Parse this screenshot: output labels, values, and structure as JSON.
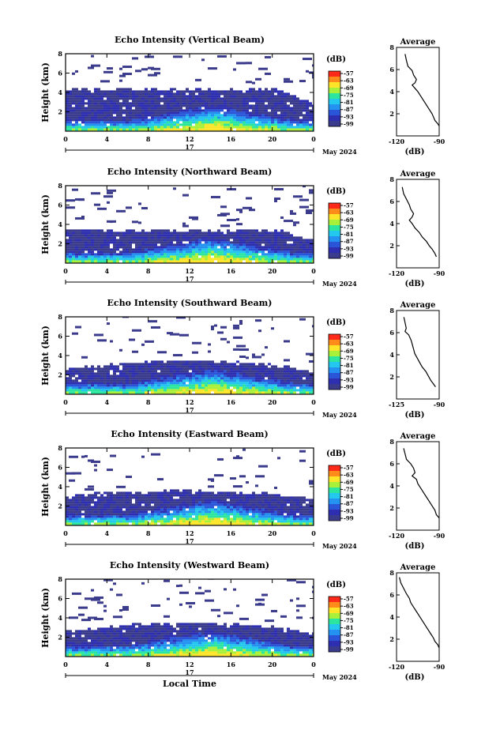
{
  "chart_data": [
    {
      "type": "heatmap",
      "title": "Echo Intensity (Vertical Beam)",
      "ylabel": "Height (km)",
      "x_ticks": [
        "0",
        "4",
        "8",
        "12",
        "16",
        "20",
        "0"
      ],
      "y_ticks": [
        "2",
        "4",
        "6",
        "8"
      ],
      "xlim": [
        0,
        24
      ],
      "ylim": [
        0,
        8
      ],
      "colorbar": {
        "unit": "(dB)",
        "ticks": [
          "-57",
          "-63",
          "-69",
          "-75",
          "-81",
          "-87",
          "-93",
          "-99"
        ]
      },
      "date_label": "May 2024",
      "day_label": "17",
      "profile": {
        "title": "Average",
        "xlabel": "(dB)",
        "x_ticks": [
          "-120",
          "-90"
        ],
        "y_ticks": [
          "2",
          "4",
          "6",
          "8"
        ],
        "xlim": [
          -120,
          -90
        ],
        "points": [
          [
            -114,
            7.4
          ],
          [
            -113,
            6.8
          ],
          [
            -112,
            6.3
          ],
          [
            -109,
            5.9
          ],
          [
            -108,
            5.5
          ],
          [
            -106,
            5.1
          ],
          [
            -107,
            4.8
          ],
          [
            -109,
            4.6
          ],
          [
            -107,
            4.3
          ],
          [
            -105,
            4.0
          ],
          [
            -103,
            3.6
          ],
          [
            -101,
            3.2
          ],
          [
            -99,
            2.8
          ],
          [
            -97,
            2.4
          ],
          [
            -95,
            2.0
          ],
          [
            -94,
            1.7
          ],
          [
            -93,
            1.4
          ],
          [
            -91,
            1.1
          ],
          [
            -90,
            0.9
          ]
        ]
      },
      "cloud_top": [
        4.2,
        4.1,
        4.2,
        4.2,
        4.1,
        4.2,
        4.2,
        4.1,
        4.2,
        4.2,
        4.2,
        4.1,
        4.2,
        4.2,
        4.2,
        4.1,
        4.2,
        4.2,
        4.2,
        4.1,
        4.2,
        4.0,
        3.6,
        3.0,
        2.6
      ]
    },
    {
      "type": "heatmap",
      "title": "Echo Intensity (Northward Beam)",
      "ylabel": "Height (km)",
      "x_ticks": [
        "0",
        "4",
        "8",
        "12",
        "16",
        "20",
        "0"
      ],
      "y_ticks": [
        "2",
        "4",
        "6",
        "8"
      ],
      "xlim": [
        0,
        24
      ],
      "ylim": [
        0,
        8
      ],
      "colorbar": {
        "unit": "(dB)",
        "ticks": [
          "-57",
          "-63",
          "-69",
          "-75",
          "-81",
          "-87",
          "-93",
          "-99"
        ]
      },
      "date_label": "May 2024",
      "day_label": "17",
      "profile": {
        "title": "Average",
        "xlabel": "(dB)",
        "x_ticks": [
          "-120",
          "-90"
        ],
        "y_ticks": [
          "2",
          "4",
          "6",
          "8"
        ],
        "xlim": [
          -120,
          -90
        ],
        "points": [
          [
            -116,
            7.3
          ],
          [
            -115,
            6.7
          ],
          [
            -113,
            6.2
          ],
          [
            -111,
            5.7
          ],
          [
            -110,
            5.3
          ],
          [
            -108,
            4.9
          ],
          [
            -109,
            4.6
          ],
          [
            -111,
            4.3
          ],
          [
            -109,
            4.0
          ],
          [
            -107,
            3.6
          ],
          [
            -104,
            3.2
          ],
          [
            -102,
            2.8
          ],
          [
            -99,
            2.4
          ],
          [
            -97,
            2.0
          ],
          [
            -95,
            1.7
          ],
          [
            -93,
            1.3
          ],
          [
            -92,
            1.0
          ]
        ]
      },
      "cloud_top": [
        3.4,
        3.3,
        3.3,
        3.4,
        3.3,
        3.2,
        3.3,
        3.3,
        3.2,
        3.3,
        3.3,
        3.2,
        3.3,
        3.3,
        3.2,
        3.2,
        3.3,
        3.2,
        3.3,
        3.2,
        3.3,
        3.2,
        2.8,
        2.4,
        2.2
      ]
    },
    {
      "type": "heatmap",
      "title": "Echo Intensity (Southward Beam)",
      "ylabel": "Height (km)",
      "x_ticks": [
        "0",
        "4",
        "8",
        "12",
        "16",
        "20",
        "0"
      ],
      "y_ticks": [
        "2",
        "4",
        "6",
        "8"
      ],
      "xlim": [
        0,
        24
      ],
      "ylim": [
        0,
        8
      ],
      "colorbar": {
        "unit": "(dB)",
        "ticks": [
          "-57",
          "-63",
          "-69",
          "-75",
          "-81",
          "-87",
          "-93",
          "-99"
        ]
      },
      "date_label": "May 2024",
      "day_label": "17",
      "profile": {
        "title": "Average",
        "xlabel": "(dB)",
        "x_ticks": [
          "-125",
          "-90"
        ],
        "y_ticks": [
          "2",
          "4",
          "6",
          "8"
        ],
        "xlim": [
          -125,
          -90
        ],
        "points": [
          [
            -119,
            7.4
          ],
          [
            -118,
            6.9
          ],
          [
            -117,
            6.4
          ],
          [
            -118,
            6.1
          ],
          [
            -115,
            5.8
          ],
          [
            -113,
            5.3
          ],
          [
            -112,
            4.9
          ],
          [
            -111,
            4.5
          ],
          [
            -110,
            4.1
          ],
          [
            -108,
            3.7
          ],
          [
            -106,
            3.3
          ],
          [
            -104,
            2.9
          ],
          [
            -101,
            2.5
          ],
          [
            -99,
            2.1
          ],
          [
            -97,
            1.7
          ],
          [
            -95,
            1.4
          ],
          [
            -93,
            1.1
          ]
        ]
      },
      "cloud_top": [
        2.5,
        2.6,
        2.7,
        2.8,
        2.9,
        3.0,
        3.1,
        3.2,
        3.2,
        3.3,
        3.3,
        3.4,
        3.4,
        3.4,
        3.3,
        3.3,
        3.2,
        3.2,
        3.1,
        3.0,
        2.9,
        2.8,
        2.6,
        2.4,
        2.2
      ]
    },
    {
      "type": "heatmap",
      "title": "Echo Intensity (Eastward Beam)",
      "ylabel": "Height (km)",
      "x_ticks": [
        "0",
        "4",
        "8",
        "12",
        "16",
        "20",
        "0"
      ],
      "y_ticks": [
        "2",
        "4",
        "6",
        "8"
      ],
      "xlim": [
        0,
        24
      ],
      "ylim": [
        0,
        8
      ],
      "colorbar": {
        "unit": "(dB)",
        "ticks": [
          "-57",
          "-63",
          "-69",
          "-75",
          "-81",
          "-87",
          "-93",
          "-99"
        ]
      },
      "date_label": "May 2024",
      "day_label": "17",
      "profile": {
        "title": "Average",
        "xlabel": "(dB)",
        "x_ticks": [
          "-120",
          "-90"
        ],
        "y_ticks": [
          "2",
          "4",
          "6",
          "8"
        ],
        "xlim": [
          -120,
          -90
        ],
        "points": [
          [
            -115,
            7.4
          ],
          [
            -114,
            6.9
          ],
          [
            -113,
            6.4
          ],
          [
            -110,
            6.0
          ],
          [
            -108,
            5.6
          ],
          [
            -107,
            5.2
          ],
          [
            -109,
            4.9
          ],
          [
            -106,
            4.6
          ],
          [
            -105,
            4.2
          ],
          [
            -103,
            3.8
          ],
          [
            -101,
            3.4
          ],
          [
            -99,
            3.0
          ],
          [
            -97,
            2.6
          ],
          [
            -95,
            2.2
          ],
          [
            -93,
            1.8
          ],
          [
            -92,
            1.4
          ],
          [
            -90,
            1.1
          ]
        ]
      },
      "cloud_top": [
        3.0,
        3.1,
        3.1,
        3.2,
        3.2,
        3.3,
        3.3,
        3.3,
        3.3,
        3.4,
        3.4,
        3.4,
        3.4,
        3.4,
        3.3,
        3.3,
        3.3,
        3.3,
        3.2,
        3.2,
        3.1,
        3.0,
        2.9,
        2.7,
        2.5
      ]
    },
    {
      "type": "heatmap",
      "title": "Echo Intensity (Westward Beam)",
      "ylabel": "Height (km)",
      "x_ticks": [
        "0",
        "4",
        "8",
        "12",
        "16",
        "20",
        "0"
      ],
      "y_ticks": [
        "2",
        "4",
        "6",
        "8"
      ],
      "xlim": [
        0,
        24
      ],
      "ylim": [
        0,
        8
      ],
      "colorbar": {
        "unit": "(dB)",
        "ticks": [
          "-57",
          "-63",
          "-69",
          "-75",
          "-81",
          "-87",
          "-93",
          "-99"
        ]
      },
      "date_label": "May 2024",
      "day_label": "17",
      "xlabel": "Local Time",
      "profile": {
        "title": "Average",
        "xlabel": "(dB)",
        "x_ticks": [
          "-120",
          "-90"
        ],
        "y_ticks": [
          "2",
          "4",
          "6",
          "8"
        ],
        "xlim": [
          -120,
          -90
        ],
        "points": [
          [
            -118,
            7.6
          ],
          [
            -117,
            7.1
          ],
          [
            -115,
            6.6
          ],
          [
            -113,
            6.1
          ],
          [
            -111,
            5.7
          ],
          [
            -110,
            5.3
          ],
          [
            -108,
            4.9
          ],
          [
            -106,
            4.5
          ],
          [
            -104,
            4.1
          ],
          [
            -102,
            3.7
          ],
          [
            -100,
            3.3
          ],
          [
            -98,
            2.9
          ],
          [
            -96,
            2.5
          ],
          [
            -94,
            2.1
          ],
          [
            -93,
            1.8
          ],
          [
            -91,
            1.5
          ],
          [
            -90,
            1.2
          ]
        ]
      },
      "cloud_top": [
        2.5,
        2.6,
        2.7,
        2.8,
        2.9,
        3.0,
        3.1,
        3.2,
        3.2,
        3.3,
        3.3,
        3.3,
        3.4,
        3.4,
        3.3,
        3.3,
        3.2,
        3.2,
        3.1,
        3.0,
        2.9,
        2.8,
        2.6,
        2.4,
        2.2
      ]
    }
  ],
  "colormap": [
    "#FF2A1A",
    "#FF8C1A",
    "#FFE52A",
    "#A8F03A",
    "#2CE6A0",
    "#24C8EE",
    "#2492F0",
    "#2B55D8",
    "#2E2FB0",
    "#3A3B8C"
  ]
}
